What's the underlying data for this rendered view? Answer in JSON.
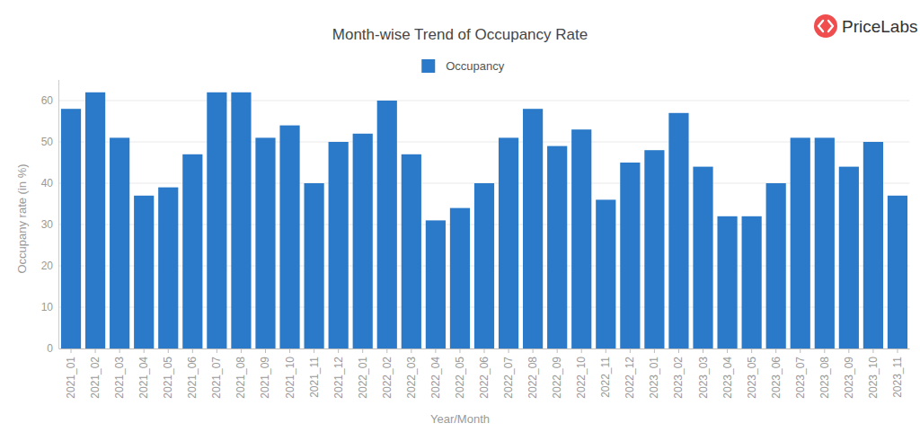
{
  "chart_data": {
    "type": "bar",
    "title": "Month-wise Trend of Occupancy Rate",
    "x_label": "Year/Month",
    "y_label": "Occupany rate (in %)",
    "annotations": [
      "PriceLabs"
    ],
    "categories": [
      "2021_01",
      "2021_02",
      "2021_03",
      "2021_04",
      "2021_05",
      "2021_06",
      "2021_07",
      "2021_08",
      "2021_09",
      "2021_10",
      "2021_11",
      "2021_12",
      "2022_01",
      "2022_02",
      "2022_03",
      "2022_04",
      "2022_05",
      "2022_06",
      "2022_07",
      "2022_08",
      "2022_09",
      "2022_10",
      "2022_11",
      "2022_12",
      "2023_01",
      "2023_02",
      "2023_03",
      "2023_04",
      "2023_05",
      "2023_06",
      "2023_07",
      "2023_08",
      "2023_09",
      "2023_10",
      "2023_11"
    ],
    "series": [
      {
        "name": "Occupancy",
        "color": "#2a7ac9",
        "values": [
          58,
          62,
          51,
          37,
          39,
          47,
          62,
          62,
          51,
          54,
          40,
          50,
          52,
          60,
          47,
          31,
          34,
          40,
          51,
          58,
          49,
          53,
          36,
          45,
          48,
          57,
          44,
          32,
          32,
          40,
          51,
          51,
          44,
          50,
          37
        ]
      }
    ],
    "ylim": [
      0,
      65
    ],
    "yticks": [
      0,
      10,
      20,
      30,
      40,
      50,
      60
    ],
    "grid": true,
    "legend": "top"
  }
}
